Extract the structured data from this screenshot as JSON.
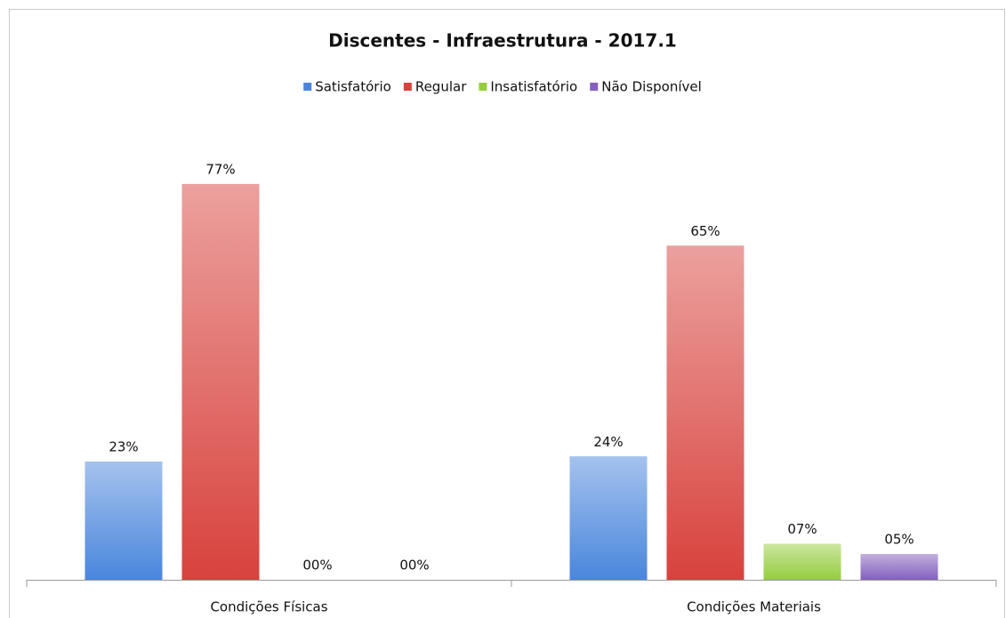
{
  "chart_data": {
    "type": "bar",
    "title": "Discentes - Infraestrutura - 2017.1",
    "categories": [
      "Condições Físicas",
      "Condições Materiais"
    ],
    "series": [
      {
        "name": "Satisfatório",
        "color": "#4a86dc",
        "values": [
          23,
          24
        ],
        "value_labels": [
          "23%",
          "24%"
        ]
      },
      {
        "name": "Regular",
        "color": "#d8423d",
        "values": [
          77,
          65
        ],
        "value_labels": [
          "77%",
          "65%"
        ]
      },
      {
        "name": "Insatisfatório",
        "color": "#96cd3e",
        "values": [
          0,
          7
        ],
        "value_labels": [
          "00%",
          "07%"
        ]
      },
      {
        "name": "Não Disponível",
        "color": "#8460bd",
        "values": [
          0,
          5
        ],
        "value_labels": [
          "00%",
          "05%"
        ]
      }
    ],
    "ylim": [
      0,
      100
    ],
    "legend": "top"
  }
}
